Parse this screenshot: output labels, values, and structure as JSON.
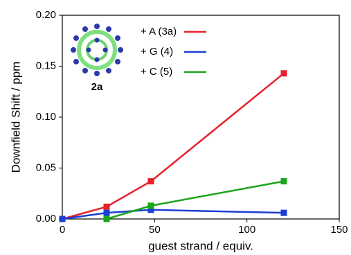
{
  "chart_data": {
    "type": "line",
    "x": [
      0,
      24,
      48,
      120
    ],
    "series": [
      {
        "name": "+ A (3a)",
        "color": "#e8202a",
        "values": [
          0,
          0.012,
          0.037,
          0.143
        ]
      },
      {
        "name": "+ G (4)",
        "color": "#1a3fd6",
        "values": [
          0,
          0.006,
          0.009,
          0.006
        ]
      },
      {
        "name": "+ C (5)",
        "color": "#1aa51a",
        "values": [
          null,
          0,
          0.013,
          0.037
        ]
      }
    ],
    "xlabel": "guest strand / equiv.",
    "ylabel": "Downfield Shift / ppm",
    "annotation": "2a",
    "xlim": [
      0,
      150
    ],
    "xticks": [
      0,
      50,
      100,
      150
    ],
    "ylim": [
      0,
      0.2
    ],
    "yticks": [
      {
        "value": 0,
        "label": "0.00"
      },
      0.05,
      {
        "value": 0.1,
        "label": "0.10"
      },
      0.15,
      {
        "value": 0.2,
        "label": "0.20"
      }
    ],
    "legend": "upper left"
  }
}
